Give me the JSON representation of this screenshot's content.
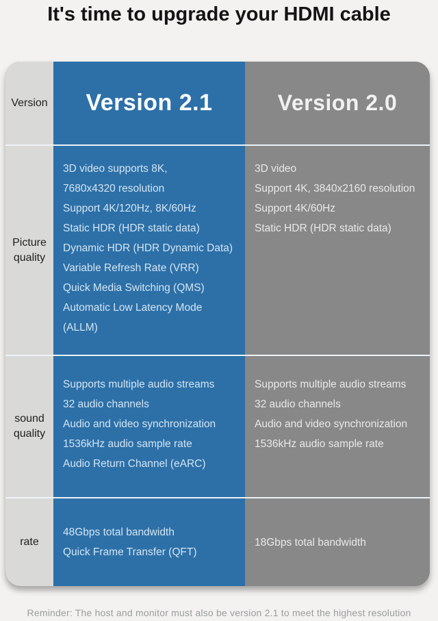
{
  "title": "It's time to upgrade your HDMI cable",
  "footer": {
    "reminder": "Reminder: The host and monitor must also be version 2.1 to meet the highest resolution"
  },
  "colors": {
    "accent_blue": "#2d70a8",
    "column_gray": "#888888",
    "label_column_gray": "#d9d9d7",
    "page_background": "#f3f2f0",
    "divider": "#edf3f8"
  },
  "table": {
    "header": {
      "row_label": "Version",
      "v21": "Version 2.1",
      "v20": "Version 2.0"
    },
    "rows": [
      {
        "label": "Picture quality",
        "v21": [
          "3D video supports 8K,",
          "7680x4320 resolution",
          "Support 4K/120Hz, 8K/60Hz",
          "Static HDR (HDR static data)",
          "Dynamic HDR (HDR Dynamic Data)",
          "Variable Refresh Rate (VRR)",
          "Quick Media Switching (QMS)",
          "Automatic Low Latency Mode",
          "(ALLM)"
        ],
        "v20": [
          "3D video",
          "Support 4K, 3840x2160 resolution",
          "Support 4K/60Hz",
          "Static HDR (HDR static data)"
        ]
      },
      {
        "label": "sound quality",
        "v21": [
          "Supports multiple audio streams",
          "32 audio channels",
          "Audio and video synchronization",
          "1536kHz audio sample rate",
          "Audio Return Channel (eARC)"
        ],
        "v20": [
          "Supports multiple audio streams",
          "32 audio channels",
          "Audio and video synchronization",
          "1536kHz audio sample rate"
        ]
      },
      {
        "label": "rate",
        "v21": [
          "48Gbps total bandwidth",
          "Quick Frame Transfer (QFT)"
        ],
        "v20": [
          "18Gbps total bandwidth"
        ]
      }
    ]
  },
  "chart_data": {
    "type": "table",
    "title": "It's time to upgrade your HDMI cable",
    "columns": [
      "Version",
      "Version 2.1",
      "Version 2.0"
    ],
    "rows": [
      [
        "Picture quality",
        "3D video supports 8K, 7680x4320 resolution; Support 4K/120Hz, 8K/60Hz; Static HDR (HDR static data); Dynamic HDR (HDR Dynamic Data); Variable Refresh Rate (VRR); Quick Media Switching (QMS); Automatic Low Latency Mode (ALLM)",
        "3D video; Support 4K, 3840x2160 resolution; Support 4K/60Hz; Static HDR (HDR static data)"
      ],
      [
        "sound quality",
        "Supports multiple audio streams; 32 audio channels; Audio and video synchronization; 1536kHz audio sample rate; Audio Return Channel (eARC)",
        "Supports multiple audio streams; 32 audio channels; Audio and video synchronization; 1536kHz audio sample rate"
      ],
      [
        "rate",
        "48Gbps total bandwidth; Quick Frame Transfer (QFT)",
        "18Gbps total bandwidth"
      ]
    ],
    "footnote": "Reminder: The host and monitor must also be version 2.1 to meet the highest resolution"
  }
}
